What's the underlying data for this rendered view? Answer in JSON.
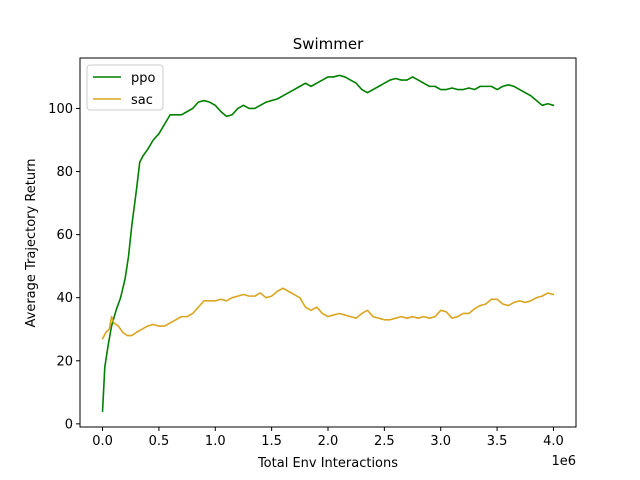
{
  "chart_data": {
    "type": "line",
    "title": "Swimmer",
    "xlabel": "Total Env Interactions",
    "ylabel": "Average Trajectory Return",
    "x_scale_note": "1e6",
    "xlim": [
      -0.2,
      4.2
    ],
    "ylim": [
      -1,
      116
    ],
    "xticks": [
      0.0,
      0.5,
      1.0,
      1.5,
      2.0,
      2.5,
      3.0,
      3.5,
      4.0
    ],
    "xtick_labels": [
      "0.0",
      "0.5",
      "1.0",
      "1.5",
      "2.0",
      "2.5",
      "3.0",
      "3.5",
      "4.0"
    ],
    "yticks": [
      0,
      20,
      40,
      60,
      80,
      100
    ],
    "ytick_labels": [
      "0",
      "20",
      "40",
      "60",
      "80",
      "100"
    ],
    "grid": false,
    "legend_position": "top-left",
    "series": [
      {
        "name": "ppo",
        "color": "#008000",
        "points": [
          [
            0.0,
            4
          ],
          [
            0.02,
            18
          ],
          [
            0.05,
            25
          ],
          [
            0.08,
            31
          ],
          [
            0.12,
            36
          ],
          [
            0.16,
            40
          ],
          [
            0.2,
            46
          ],
          [
            0.23,
            53
          ],
          [
            0.26,
            63
          ],
          [
            0.3,
            74
          ],
          [
            0.33,
            83
          ],
          [
            0.36,
            85
          ],
          [
            0.4,
            87
          ],
          [
            0.45,
            90
          ],
          [
            0.5,
            92
          ],
          [
            0.55,
            95
          ],
          [
            0.6,
            98
          ],
          [
            0.65,
            98
          ],
          [
            0.7,
            98
          ],
          [
            0.75,
            99
          ],
          [
            0.8,
            100
          ],
          [
            0.85,
            102
          ],
          [
            0.9,
            102.5
          ],
          [
            0.95,
            102
          ],
          [
            1.0,
            101
          ],
          [
            1.05,
            99
          ],
          [
            1.1,
            97.5
          ],
          [
            1.15,
            98
          ],
          [
            1.2,
            100
          ],
          [
            1.25,
            101
          ],
          [
            1.3,
            100
          ],
          [
            1.35,
            100
          ],
          [
            1.4,
            101
          ],
          [
            1.45,
            102
          ],
          [
            1.5,
            102.5
          ],
          [
            1.55,
            103
          ],
          [
            1.6,
            104
          ],
          [
            1.65,
            105
          ],
          [
            1.7,
            106
          ],
          [
            1.75,
            107
          ],
          [
            1.8,
            108
          ],
          [
            1.85,
            107
          ],
          [
            1.9,
            108
          ],
          [
            1.95,
            109
          ],
          [
            2.0,
            110
          ],
          [
            2.05,
            110
          ],
          [
            2.1,
            110.5
          ],
          [
            2.15,
            110
          ],
          [
            2.2,
            109
          ],
          [
            2.25,
            108
          ],
          [
            2.3,
            106
          ],
          [
            2.35,
            105
          ],
          [
            2.4,
            106
          ],
          [
            2.45,
            107
          ],
          [
            2.5,
            108
          ],
          [
            2.55,
            109
          ],
          [
            2.6,
            109.5
          ],
          [
            2.65,
            109
          ],
          [
            2.7,
            109
          ],
          [
            2.75,
            110
          ],
          [
            2.8,
            109
          ],
          [
            2.85,
            108
          ],
          [
            2.9,
            107
          ],
          [
            2.95,
            107
          ],
          [
            3.0,
            106
          ],
          [
            3.05,
            106
          ],
          [
            3.1,
            106.5
          ],
          [
            3.15,
            106
          ],
          [
            3.2,
            106
          ],
          [
            3.25,
            106.5
          ],
          [
            3.3,
            106
          ],
          [
            3.35,
            107
          ],
          [
            3.4,
            107
          ],
          [
            3.45,
            107
          ],
          [
            3.5,
            106
          ],
          [
            3.55,
            107
          ],
          [
            3.6,
            107.5
          ],
          [
            3.65,
            107
          ],
          [
            3.7,
            106
          ],
          [
            3.75,
            105
          ],
          [
            3.8,
            104
          ],
          [
            3.85,
            102.5
          ],
          [
            3.9,
            101
          ],
          [
            3.95,
            101.5
          ],
          [
            4.0,
            101
          ]
        ]
      },
      {
        "name": "sac",
        "color": "#DAA520",
        "points": [
          [
            0.0,
            27
          ],
          [
            0.03,
            29
          ],
          [
            0.06,
            30
          ],
          [
            0.08,
            34
          ],
          [
            0.1,
            32
          ],
          [
            0.14,
            31
          ],
          [
            0.18,
            29
          ],
          [
            0.22,
            28
          ],
          [
            0.26,
            28
          ],
          [
            0.3,
            29
          ],
          [
            0.35,
            30
          ],
          [
            0.4,
            31
          ],
          [
            0.45,
            31.5
          ],
          [
            0.5,
            31
          ],
          [
            0.55,
            31
          ],
          [
            0.6,
            32
          ],
          [
            0.65,
            33
          ],
          [
            0.7,
            34
          ],
          [
            0.75,
            34
          ],
          [
            0.8,
            35
          ],
          [
            0.85,
            37
          ],
          [
            0.9,
            39
          ],
          [
            0.95,
            39
          ],
          [
            1.0,
            39
          ],
          [
            1.05,
            39.5
          ],
          [
            1.1,
            39
          ],
          [
            1.15,
            40
          ],
          [
            1.2,
            40.5
          ],
          [
            1.25,
            41
          ],
          [
            1.3,
            40.5
          ],
          [
            1.35,
            40.5
          ],
          [
            1.4,
            41.5
          ],
          [
            1.45,
            40
          ],
          [
            1.5,
            40.5
          ],
          [
            1.55,
            42
          ],
          [
            1.6,
            43
          ],
          [
            1.65,
            42
          ],
          [
            1.7,
            41
          ],
          [
            1.75,
            40
          ],
          [
            1.8,
            37
          ],
          [
            1.85,
            36
          ],
          [
            1.9,
            37
          ],
          [
            1.95,
            35
          ],
          [
            2.0,
            34
          ],
          [
            2.05,
            34.5
          ],
          [
            2.1,
            35
          ],
          [
            2.15,
            34.5
          ],
          [
            2.2,
            34
          ],
          [
            2.25,
            33.5
          ],
          [
            2.3,
            35
          ],
          [
            2.35,
            36
          ],
          [
            2.4,
            34
          ],
          [
            2.45,
            33.5
          ],
          [
            2.5,
            33
          ],
          [
            2.55,
            33
          ],
          [
            2.6,
            33.5
          ],
          [
            2.65,
            34
          ],
          [
            2.7,
            33.5
          ],
          [
            2.75,
            34
          ],
          [
            2.8,
            33.5
          ],
          [
            2.85,
            34
          ],
          [
            2.9,
            33.5
          ],
          [
            2.95,
            34
          ],
          [
            3.0,
            36
          ],
          [
            3.05,
            35.5
          ],
          [
            3.1,
            33.5
          ],
          [
            3.15,
            34
          ],
          [
            3.2,
            35
          ],
          [
            3.25,
            35
          ],
          [
            3.3,
            36.5
          ],
          [
            3.35,
            37.5
          ],
          [
            3.4,
            38
          ],
          [
            3.45,
            39.5
          ],
          [
            3.5,
            39.5
          ],
          [
            3.55,
            38
          ],
          [
            3.6,
            37.5
          ],
          [
            3.65,
            38.5
          ],
          [
            3.7,
            39
          ],
          [
            3.75,
            38.5
          ],
          [
            3.8,
            39
          ],
          [
            3.85,
            40
          ],
          [
            3.9,
            40.5
          ],
          [
            3.95,
            41.5
          ],
          [
            4.0,
            41
          ]
        ]
      }
    ]
  }
}
